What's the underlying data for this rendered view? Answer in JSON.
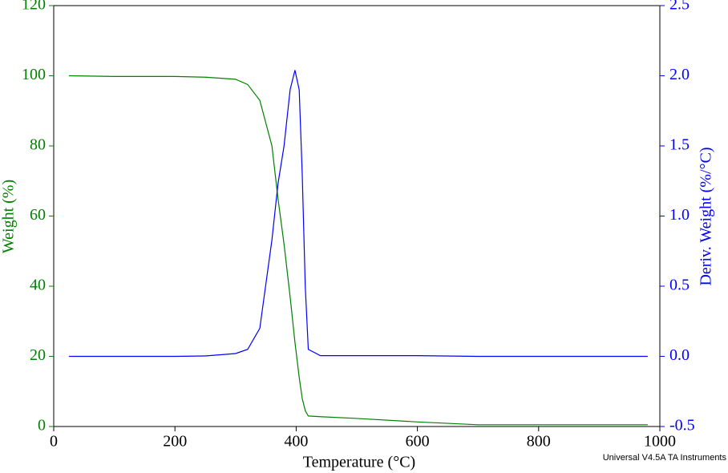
{
  "chart_data": {
    "type": "line",
    "xlabel": "Temperature (°C)",
    "ylabel": "Weight (%)",
    "y2label": "Deriv. Weight (%/°C)",
    "footer": "Universal V4.5A TA Instruments",
    "x": [
      25,
      100,
      200,
      250,
      300,
      320,
      340,
      360,
      370,
      380,
      390,
      398,
      405,
      410,
      415,
      420,
      440,
      500,
      600,
      700,
      800,
      900,
      980
    ],
    "xlim": [
      0,
      1000
    ],
    "xticks": [
      0,
      200,
      400,
      600,
      800,
      1000
    ],
    "ylim": [
      0,
      120
    ],
    "yticks": [
      0,
      20,
      40,
      60,
      80,
      100,
      120
    ],
    "y2lim": [
      -0.5,
      2.5
    ],
    "y2ticks": [
      -0.5,
      {
        "value": 0,
        "label": "0.0"
      },
      0.5,
      {
        "value": 1,
        "label": "1.0"
      },
      1.5,
      {
        "value": 2,
        "label": "2.0"
      },
      2.5
    ],
    "series": [
      {
        "name": "Weight",
        "color": "#008000",
        "values": [
          100,
          99.8,
          99.8,
          99.6,
          99,
          97.5,
          93,
          80,
          65,
          52,
          37,
          24,
          14,
          8,
          4.5,
          3,
          2.8,
          2.3,
          1.3,
          0.5,
          0.5,
          0.5,
          0.5
        ]
      },
      {
        "name": "Deriv. Weight",
        "color": "#0000ff",
        "axis": "y2",
        "values": [
          0,
          0,
          0,
          0.003,
          0.02,
          0.05,
          0.2,
          0.83,
          1.23,
          1.5,
          1.9,
          2.04,
          1.9,
          1.3,
          0.5,
          0.05,
          0.005,
          0.005,
          0.005,
          0,
          0,
          0,
          0
        ]
      }
    ]
  }
}
